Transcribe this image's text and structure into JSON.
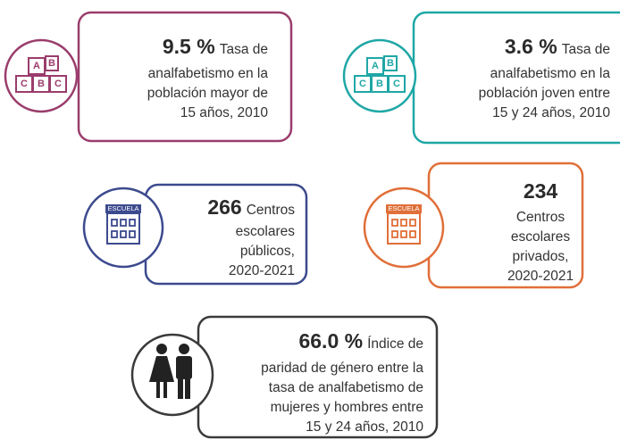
{
  "cards": [
    {
      "value": "9.5 %",
      "lines": [
        "Tasa de",
        "analfabetismo en la",
        "población mayor de",
        "15 años, 2010"
      ],
      "icon": [
        "A",
        "B",
        "C",
        "B",
        "C"
      ]
    },
    {
      "value": "3.6 %",
      "lines": [
        "Tasa de",
        "analfabetismo en la",
        "población joven entre",
        "15 y 24 años, 2010"
      ],
      "icon": [
        "A",
        "B",
        "C",
        "B",
        "C"
      ]
    },
    {
      "value": "266",
      "lines": [
        "Centros",
        "escolares",
        "públicos,",
        "2020-2021"
      ],
      "icon": "ESCUELA"
    },
    {
      "value": "234",
      "lines": [
        "Centros",
        "escolares",
        "privados,",
        "2020-2021"
      ],
      "icon": "ESCUELA"
    },
    {
      "value": "66.0 %",
      "lines": [
        "Índice de",
        "paridad de género entre la",
        "tasa de analfabetismo de",
        "mujeres y hombres entre",
        "15 y 24 años, 2010"
      ]
    }
  ]
}
